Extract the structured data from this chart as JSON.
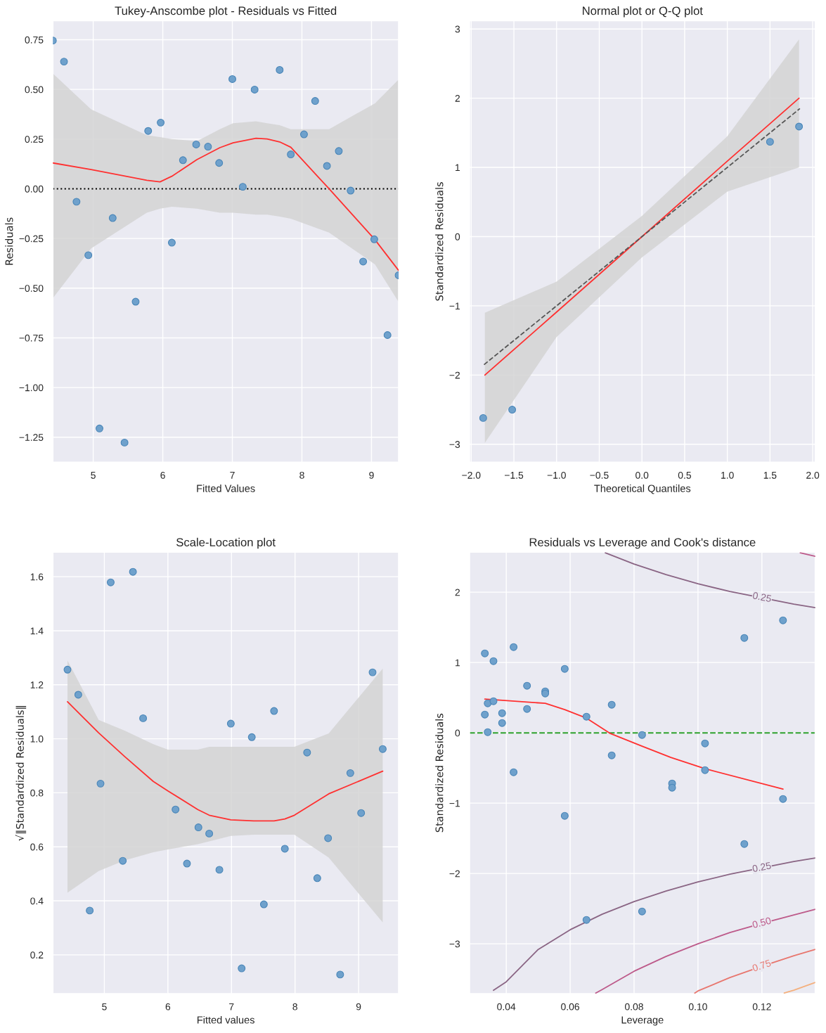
{
  "chart_data": [
    {
      "type": "scatter",
      "title": "Tukey-Anscombe plot - Residuals vs Fitted",
      "xlabel": "Fitted Values",
      "ylabel": "Residuals",
      "xlim": [
        4.42,
        9.39
      ],
      "ylim": [
        -1.376,
        0.846
      ],
      "xticks": [
        5,
        6,
        7,
        8,
        9
      ],
      "yticks": [
        {
          "value": -1.25,
          "label": "−1.25"
        },
        {
          "value": -1.0,
          "label": "−1.00"
        },
        {
          "value": -0.75,
          "label": "−0.75"
        },
        {
          "value": -0.5,
          "label": "−0.50"
        },
        {
          "value": -0.25,
          "label": "−0.25"
        },
        {
          "value": 0,
          "label": "0.00"
        },
        {
          "value": 0.25,
          "label": "0.25"
        },
        {
          "value": 0.5,
          "label": "0.50"
        },
        {
          "value": 0.75,
          "label": "0.75"
        }
      ],
      "grid": true,
      "ref_lines": [
        {
          "axis": "y",
          "value": 0,
          "color": "#000000",
          "line_style": "dotted"
        }
      ],
      "series": [
        {
          "type": "line",
          "color": "#ff3030",
          "x": [
            4.42,
            4.97,
            5.77,
            5.96,
            6.13,
            6.49,
            6.82,
            7.01,
            7.34,
            7.5,
            7.68,
            7.84,
            8.39,
            9.05,
            9.39
          ],
          "values": [
            0.13,
            0.097,
            0.043,
            0.035,
            0.063,
            0.147,
            0.207,
            0.231,
            0.254,
            0.251,
            0.236,
            0.209,
            0.0,
            -0.256,
            -0.411
          ],
          "lower": [
            -0.55,
            -0.3,
            -0.12,
            -0.1,
            -0.09,
            -0.1,
            -0.12,
            -0.12,
            -0.13,
            -0.13,
            -0.14,
            -0.15,
            -0.22,
            -0.38,
            -0.57
          ],
          "upper": [
            0.58,
            0.4,
            0.27,
            0.26,
            0.25,
            0.24,
            0.3,
            0.33,
            0.34,
            0.33,
            0.32,
            0.3,
            0.3,
            0.43,
            0.55
          ]
        },
        {
          "color": "#6fa1cc",
          "marker": "circle",
          "x": [
            4.42,
            4.58,
            4.76,
            4.93,
            5.09,
            5.28,
            5.45,
            5.61,
            5.79,
            5.97,
            6.13,
            6.29,
            6.48,
            6.65,
            6.81,
            7.0,
            7.15,
            7.32,
            7.68,
            7.84,
            8.03,
            8.19,
            8.36,
            8.53,
            8.7,
            8.88,
            9.04,
            9.23,
            9.39
          ],
          "values": [
            0.746,
            0.64,
            -0.065,
            -0.334,
            -1.206,
            -0.147,
            -1.277,
            -0.568,
            0.291,
            0.333,
            -0.271,
            0.144,
            0.223,
            0.212,
            0.13,
            0.552,
            0.01,
            0.499,
            0.598,
            0.173,
            0.274,
            0.442,
            0.115,
            0.19,
            -0.009,
            -0.366,
            -0.254,
            -0.736,
            -0.435
          ]
        }
      ]
    },
    {
      "type": "scatter",
      "title": "Normal plot or Q-Q plot",
      "xlabel": "Theoretical Quantiles",
      "ylabel": "Standardized Residuals",
      "xlim": [
        -2.02,
        2.03
      ],
      "ylim": [
        -3.26,
        3.12
      ],
      "xticks": [
        {
          "value": -2.0,
          "label": "−2.0"
        },
        {
          "value": -1.5,
          "label": "−1.5"
        },
        {
          "value": -1.0,
          "label": "−1.0"
        },
        {
          "value": -0.5,
          "label": "−0.5"
        },
        {
          "value": 0,
          "label": "0.0"
        },
        {
          "value": 0.5,
          "label": "0.5"
        },
        {
          "value": 1.0,
          "label": "1.0"
        },
        {
          "value": 1.5,
          "label": "1.5"
        },
        {
          "value": 2.0,
          "label": "2.0"
        }
      ],
      "yticks": [
        {
          "value": -3,
          "label": "−3"
        },
        {
          "value": -2,
          "label": "−2"
        },
        {
          "value": -1,
          "label": "−1"
        },
        0,
        1,
        2,
        3
      ],
      "grid": true,
      "series": [
        {
          "type": "line",
          "color": "#ff3030",
          "x": [
            -1.84,
            -1.0,
            0,
            1.0,
            1.84
          ],
          "values": [
            -2.0,
            -1.09,
            0,
            1.09,
            2.0
          ],
          "lower": [
            -2.98,
            -1.45,
            -0.3,
            0.65,
            1.0
          ],
          "upper": [
            -1.1,
            -0.65,
            0.3,
            1.45,
            2.85
          ]
        },
        {
          "type": "line",
          "color": "#555555",
          "line_style": "dashed",
          "x": [
            -1.85,
            1.85
          ],
          "values": [
            -1.85,
            1.85
          ]
        },
        {
          "color": "#6fa1cc",
          "marker": "circle",
          "x": [
            -1.86,
            -1.52,
            1.5,
            1.84
          ],
          "values": [
            -2.62,
            -2.5,
            1.37,
            1.59
          ]
        }
      ]
    },
    {
      "type": "scatter",
      "title": "Scale-Location plot",
      "xlabel": "Fitted values",
      "ylabel": "√‖Standardized Residuals‖",
      "xlim": [
        4.19,
        9.63
      ],
      "ylim": [
        0.056,
        1.691
      ],
      "xticks": [
        5,
        6,
        7,
        8,
        9
      ],
      "yticks": [
        0.2,
        0.4,
        0.6,
        0.8,
        {
          "value": 1.0,
          "label": "1.0"
        },
        1.2,
        1.4,
        1.6
      ],
      "grid": true,
      "series": [
        {
          "type": "line",
          "color": "#ff3030",
          "x": [
            4.42,
            4.91,
            5.32,
            5.77,
            6.0,
            6.47,
            6.65,
            6.99,
            7.35,
            7.67,
            7.84,
            7.99,
            8.53,
            9.38
          ],
          "values": [
            1.137,
            1.022,
            0.934,
            0.842,
            0.807,
            0.738,
            0.717,
            0.7,
            0.696,
            0.696,
            0.703,
            0.717,
            0.796,
            0.88
          ],
          "lower": [
            0.43,
            0.51,
            0.55,
            0.58,
            0.59,
            0.61,
            0.62,
            0.64,
            0.645,
            0.645,
            0.645,
            0.645,
            0.56,
            0.32
          ],
          "upper": [
            1.29,
            1.07,
            1.03,
            0.98,
            0.96,
            0.96,
            0.97,
            0.97,
            0.97,
            0.97,
            0.97,
            0.97,
            1.02,
            1.26
          ]
        },
        {
          "color": "#6fa1cc",
          "marker": "circle",
          "x": [
            4.42,
            4.59,
            4.77,
            4.94,
            5.1,
            5.29,
            5.45,
            5.61,
            6.12,
            6.3,
            6.48,
            6.65,
            6.81,
            6.99,
            7.16,
            7.32,
            7.51,
            7.67,
            7.84,
            8.19,
            8.35,
            8.52,
            8.71,
            8.87,
            9.04,
            9.22,
            9.38
          ],
          "values": [
            1.256,
            1.163,
            0.364,
            0.834,
            1.579,
            0.548,
            1.618,
            1.076,
            0.738,
            0.538,
            0.672,
            0.649,
            0.515,
            1.056,
            0.15,
            1.006,
            0.387,
            1.103,
            0.593,
            0.949,
            0.484,
            0.632,
            0.127,
            0.873,
            0.725,
            1.246,
            0.962
          ]
        }
      ]
    },
    {
      "type": "scatter",
      "title": "Residuals vs Leverage and Cook's distance",
      "xlabel": "Leverage",
      "ylabel": "Standardized Residuals",
      "xlim": [
        0.0285,
        0.1367
      ],
      "ylim": [
        -3.71,
        2.57
      ],
      "xticks": [
        0.04,
        0.06,
        0.08,
        {
          "value": 0.1,
          "label": "0.10"
        },
        0.12
      ],
      "yticks": [
        {
          "value": -3,
          "label": "−3"
        },
        {
          "value": -2,
          "label": "−2"
        },
        {
          "value": -1,
          "label": "−1"
        },
        0,
        1,
        2
      ],
      "grid": true,
      "ref_lines": [
        {
          "axis": "y",
          "value": 0,
          "color": "#2ca02c",
          "line_style": "dashed"
        }
      ],
      "series": [
        {
          "type": "line",
          "name": "0.25",
          "color": "#8a6584",
          "x": [
            0.071,
            0.08,
            0.09,
            0.1,
            0.11,
            0.12,
            0.13,
            0.1367
          ],
          "values": [
            2.56,
            2.4,
            2.25,
            2.12,
            2.01,
            1.92,
            1.83,
            1.78
          ]
        },
        {
          "type": "line",
          "color": "#bd5a8a",
          "x": [
            0.132,
            0.1367
          ],
          "values": [
            2.56,
            2.51
          ]
        },
        {
          "type": "line",
          "name": "0.25",
          "color": "#8a6584",
          "x": [
            0.036,
            0.04,
            0.05,
            0.06,
            0.07,
            0.08,
            0.09,
            0.1,
            0.11,
            0.12,
            0.13,
            0.1367
          ],
          "values": [
            -3.66,
            -3.54,
            -3.08,
            -2.8,
            -2.58,
            -2.4,
            -2.25,
            -2.12,
            -2.01,
            -1.92,
            -1.83,
            -1.78
          ]
        },
        {
          "type": "line",
          "name": "0.50",
          "color": "#bd5a8a",
          "x": [
            0.068,
            0.07,
            0.08,
            0.09,
            0.1,
            0.11,
            0.12,
            0.13,
            0.1367
          ],
          "values": [
            -3.7,
            -3.65,
            -3.39,
            -3.18,
            -3.0,
            -2.84,
            -2.71,
            -2.59,
            -2.51
          ]
        },
        {
          "type": "line",
          "name": "0.75",
          "color": "#e8766e",
          "x": [
            0.099,
            0.1,
            0.11,
            0.12,
            0.13,
            0.1367
          ],
          "values": [
            -3.7,
            -3.67,
            -3.48,
            -3.32,
            -3.17,
            -3.08
          ]
        },
        {
          "type": "line",
          "color": "#f4b07e",
          "x": [
            0.127,
            0.13,
            0.1367
          ],
          "values": [
            -3.7,
            -3.66,
            -3.55
          ]
        },
        {
          "type": "line",
          "color": "#ff3030",
          "x": [
            0.0333,
            0.0522,
            0.0583,
            0.0651,
            0.0726,
            0.0825,
            0.0915,
            0.1022,
            0.1266
          ],
          "values": [
            0.48,
            0.42,
            0.33,
            0.21,
            -0.01,
            -0.19,
            -0.35,
            -0.51,
            -0.8
          ]
        },
        {
          "color": "#6fa1cc",
          "marker": "circle",
          "x": [
            0.0333,
            0.036,
            0.0423,
            0.0583,
            0.0465,
            0.0522,
            0.0522,
            0.0342,
            0.036,
            0.0333,
            0.0387,
            0.0465,
            0.0651,
            0.073,
            0.0387,
            0.0342,
            0.0825,
            0.1022,
            0.073,
            0.0423,
            0.1022,
            0.0919,
            0.0919,
            0.1266,
            0.0583,
            0.1145,
            0.1266,
            0.1145,
            0.0825,
            0.0651
          ],
          "values": [
            1.13,
            1.02,
            1.22,
            0.91,
            0.67,
            0.59,
            0.56,
            0.42,
            0.45,
            0.26,
            0.28,
            0.34,
            0.23,
            0.4,
            0.14,
            0.01,
            -0.03,
            -0.15,
            -0.32,
            -0.56,
            -0.53,
            -0.72,
            -0.78,
            -0.94,
            -1.18,
            1.35,
            1.6,
            -1.58,
            -2.54,
            -2.66
          ]
        }
      ]
    }
  ]
}
